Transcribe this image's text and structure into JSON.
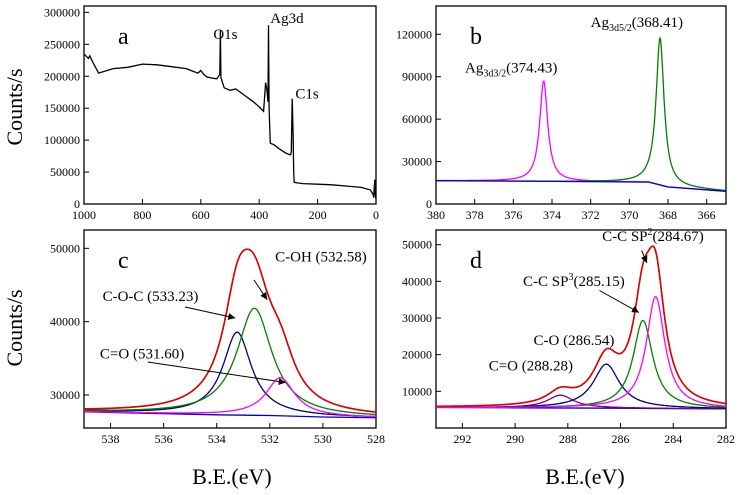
{
  "figure": {
    "ylabel": "Counts/s",
    "xlabel": "B.E.(eV)"
  },
  "chart_data": [
    {
      "id": "a",
      "type": "line",
      "panel_label": "a",
      "xlim": [
        1000,
        0
      ],
      "ylim": [
        0,
        310000
      ],
      "xticks": [
        1000,
        800,
        600,
        400,
        200,
        0
      ],
      "yticks": [
        0,
        50000,
        100000,
        150000,
        200000,
        250000,
        300000
      ],
      "series": [
        {
          "name": "Survey",
          "color": "#000000",
          "kind": "survey",
          "x": [
            1000,
            985,
            980,
            970,
            950,
            900,
            850,
            800,
            750,
            700,
            650,
            610,
            600,
            590,
            580,
            560,
            545,
            535,
            533,
            531,
            520,
            500,
            480,
            450,
            420,
            400,
            385,
            378,
            374,
            370,
            368,
            366,
            362,
            350,
            330,
            310,
            300,
            292,
            290,
            287,
            284,
            282,
            280,
            270,
            250,
            200,
            150,
            100,
            50,
            20,
            10,
            8,
            6,
            4,
            2,
            0
          ],
          "y": [
            235000,
            228000,
            232000,
            222000,
            205000,
            212000,
            214000,
            219000,
            218000,
            215000,
            212000,
            205000,
            209000,
            203000,
            199000,
            197000,
            196000,
            203000,
            272000,
            198000,
            182000,
            178000,
            180000,
            170000,
            160000,
            152000,
            145000,
            190000,
            180000,
            160000,
            280000,
            150000,
            95000,
            93000,
            86000,
            80000,
            78000,
            77000,
            82000,
            165000,
            110000,
            50000,
            34000,
            33000,
            32000,
            31000,
            30000,
            28000,
            26000,
            22000,
            15000,
            10000,
            25000,
            38000,
            12000,
            8000
          ]
        }
      ],
      "annotations": [
        {
          "text": "O1s",
          "x": 557,
          "y": 258000
        },
        {
          "text": "Ag3d",
          "x": 362,
          "y": 283000
        },
        {
          "text": "C1s",
          "x": 276,
          "y": 165000
        }
      ]
    },
    {
      "id": "b",
      "type": "line",
      "panel_label": "b",
      "xlim": [
        380,
        365
      ],
      "ylim": [
        0,
        140000
      ],
      "xticks": [
        380,
        378,
        376,
        374,
        372,
        370,
        368,
        366
      ],
      "yticks": [
        0,
        30000,
        60000,
        90000,
        120000
      ],
      "series": [
        {
          "name": "raw",
          "color": "#000000",
          "kind": "sum",
          "components": [
            1,
            2,
            3
          ]
        },
        {
          "name": "Ag3d3/2",
          "color": "#ff00ff",
          "kind": "peak",
          "center": 374.43,
          "height": 71000,
          "fwhm": 0.5
        },
        {
          "name": "Ag3d5/2",
          "color": "#008000",
          "kind": "peak",
          "center": 368.41,
          "height": 104000,
          "fwhm": 0.5
        },
        {
          "name": "background",
          "color": "#0000cd",
          "kind": "bg",
          "x": [
            380,
            374,
            369,
            368,
            365
          ],
          "y": [
            16500,
            16000,
            15500,
            12000,
            9000
          ]
        },
        {
          "name": "fit",
          "color": "#008000",
          "kind": "sum",
          "components": [
            1,
            2,
            3
          ]
        }
      ],
      "annotations": [
        {
          "text": "Ag",
          "sub": "3d3/2",
          "rest": "(374.43)",
          "x": 378.5,
          "y": 93000
        },
        {
          "text": "Ag",
          "sub": "3d5/2",
          "rest": "(368.41)",
          "x": 372.0,
          "y": 125000
        }
      ]
    },
    {
      "id": "c",
      "type": "line",
      "panel_label": "c",
      "xlim": [
        539,
        528
      ],
      "ylim": [
        25500,
        52500
      ],
      "xticks": [
        538,
        536,
        534,
        532,
        530,
        528
      ],
      "yticks": [
        30000,
        40000,
        50000
      ],
      "series": [
        {
          "name": "background",
          "color": "#0000cd",
          "kind": "bg",
          "x": [
            539,
            534,
            532,
            530,
            528
          ],
          "y": [
            27700,
            27300,
            27200,
            27000,
            26900
          ]
        },
        {
          "name": "C-O-C",
          "color": "#000080",
          "kind": "peak",
          "center": 533.23,
          "height": 11300,
          "fwhm": 1.3
        },
        {
          "name": "C-OH",
          "color": "#008000",
          "kind": "peak",
          "center": 532.58,
          "height": 14600,
          "fwhm": 1.6
        },
        {
          "name": "C=O",
          "color": "#ff00ff",
          "kind": "peak",
          "center": 531.6,
          "height": 5200,
          "fwhm": 1.3
        },
        {
          "name": "sum",
          "color": "#000000",
          "kind": "sum",
          "components": [
            1,
            2,
            3
          ]
        },
        {
          "name": "fit",
          "color": "#e00000",
          "kind": "sum",
          "components": [
            1,
            2,
            3
          ]
        }
      ],
      "annotations": [
        {
          "text": "C-O-C (533.23)",
          "x": 538.3,
          "y": 42800
        },
        {
          "text": "C-OH (532.58)",
          "x": 531.8,
          "y": 48200
        },
        {
          "text": "C=O (531.60)",
          "x": 538.4,
          "y": 35000
        }
      ],
      "arrows": [
        {
          "from": [
            535.2,
            42000
          ],
          "to": [
            533.3,
            40500
          ]
        },
        {
          "from": [
            532.6,
            45700
          ],
          "to": [
            532.1,
            43000
          ]
        },
        {
          "from": [
            536.6,
            34500
          ],
          "to": [
            531.4,
            31700
          ]
        }
      ]
    },
    {
      "id": "d",
      "type": "line",
      "panel_label": "d",
      "xlim": [
        293,
        282
      ],
      "ylim": [
        0,
        54000
      ],
      "xticks": [
        292,
        290,
        288,
        286,
        284,
        282
      ],
      "yticks": [
        10000,
        20000,
        30000,
        40000,
        50000
      ],
      "series": [
        {
          "name": "background",
          "color": "#0000cd",
          "kind": "bg",
          "x": [
            293,
            290,
            286,
            284,
            282
          ],
          "y": [
            5600,
            5500,
            5400,
            5300,
            5200
          ]
        },
        {
          "name": "C=O",
          "color": "#800080",
          "kind": "peak",
          "center": 288.28,
          "height": 3500,
          "fwhm": 1.2
        },
        {
          "name": "C-O",
          "color": "#000080",
          "kind": "peak",
          "center": 286.54,
          "height": 12000,
          "fwhm": 1.2
        },
        {
          "name": "C-C SP3",
          "color": "#008000",
          "kind": "peak",
          "center": 285.15,
          "height": 24000,
          "fwhm": 0.9
        },
        {
          "name": "C-C SP2",
          "color": "#ff00ff",
          "kind": "peak",
          "center": 284.67,
          "height": 30500,
          "fwhm": 0.85
        },
        {
          "name": "sum",
          "color": "#000000",
          "kind": "sum",
          "components": [
            1,
            2,
            3,
            4
          ]
        },
        {
          "name": "fit",
          "color": "#e00000",
          "kind": "sum",
          "components": [
            1,
            2,
            3,
            4
          ]
        }
      ],
      "annotations": [
        {
          "text": "C-C SP",
          "sup": "2",
          "rest": "(284.67)",
          "x": 286.7,
          "y": 51000
        },
        {
          "text": "C-C SP",
          "sup": "3",
          "rest": "(285.15)",
          "x": 289.7,
          "y": 38700
        },
        {
          "text": "C-O (286.54)",
          "x": 289.3,
          "y": 22700
        },
        {
          "text": "C=O (288.28)",
          "x": 291.0,
          "y": 15700
        }
      ],
      "arrows": [
        {
          "from": [
            285.2,
            48400
          ],
          "to": [
            285.0,
            45000
          ]
        },
        {
          "from": [
            286.8,
            37500
          ],
          "to": [
            285.3,
            31500
          ]
        }
      ]
    }
  ]
}
